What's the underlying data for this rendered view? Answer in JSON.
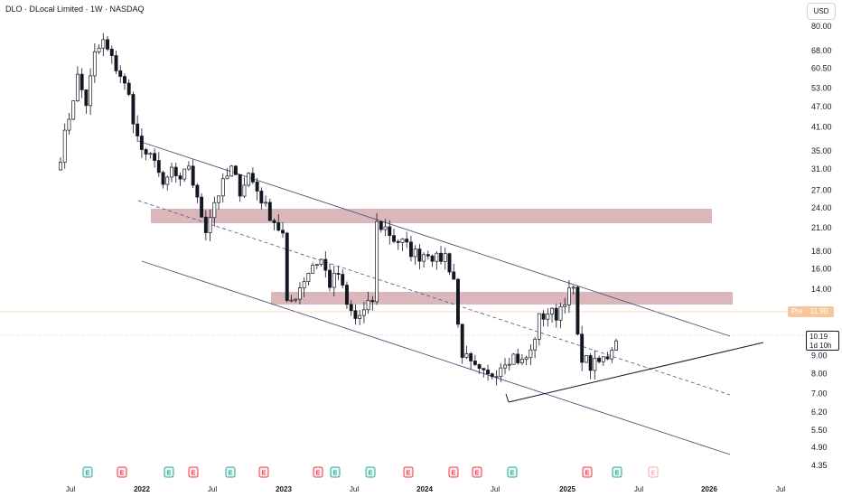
{
  "legend": {
    "text": "DLO · DLocal Limited · 1W · NASDAQ"
  },
  "currency": "USD",
  "price_badges": {
    "premarket_label": "Pre",
    "premarket_value": "11.90",
    "last_price": "10.19",
    "countdown": "1d 10h"
  },
  "colors": {
    "candle": "#131722",
    "zone": "#b97c82",
    "channel": "#4a5578",
    "premarket": "#f7a663"
  },
  "chart_data": {
    "type": "candlestick",
    "title": "DLO · DLocal Limited · 1W · NASDAQ",
    "y_scale": "log",
    "ylim": [
      4.2,
      85
    ],
    "y_ticks": [
      "80.00",
      "68.00",
      "60.50",
      "53.00",
      "47.00",
      "41.00",
      "35.00",
      "31.00",
      "27.00",
      "24.00",
      "21.00",
      "18.00",
      "16.00",
      "14.00",
      "11.90",
      "10.19",
      "9.00",
      "8.00",
      "7.00",
      "6.20",
      "5.50",
      "4.90",
      "4.35"
    ],
    "x_ticks": [
      {
        "label": "Jul",
        "year": false
      },
      {
        "label": "2022",
        "year": true
      },
      {
        "label": "Jul",
        "year": false
      },
      {
        "label": "2023",
        "year": true
      },
      {
        "label": "Jul",
        "year": false
      },
      {
        "label": "2024",
        "year": true
      },
      {
        "label": "Jul",
        "year": false
      },
      {
        "label": "2025",
        "year": true
      },
      {
        "label": "Jul",
        "year": false
      },
      {
        "label": "2026",
        "year": true
      },
      {
        "label": "Jul",
        "year": false
      }
    ],
    "anchors": [
      [
        0,
        34
      ],
      [
        2,
        44
      ],
      [
        4,
        57
      ],
      [
        6,
        48
      ],
      [
        8,
        66
      ],
      [
        10,
        72
      ],
      [
        12,
        64
      ],
      [
        14,
        58
      ],
      [
        16,
        50
      ],
      [
        18,
        38
      ],
      [
        20,
        33
      ],
      [
        22,
        34
      ],
      [
        24,
        27
      ],
      [
        26,
        31
      ],
      [
        28,
        28
      ],
      [
        30,
        32
      ],
      [
        32,
        25
      ],
      [
        34,
        21
      ],
      [
        36,
        25
      ],
      [
        38,
        28
      ],
      [
        40,
        31
      ],
      [
        42,
        27
      ],
      [
        44,
        30
      ],
      [
        46,
        27
      ],
      [
        48,
        24
      ],
      [
        50,
        22
      ],
      [
        52,
        20
      ],
      [
        53,
        12.5
      ],
      [
        55,
        13.5
      ],
      [
        57,
        15
      ],
      [
        59,
        16.5
      ],
      [
        61,
        17
      ],
      [
        63,
        14.5
      ],
      [
        65,
        15.5
      ],
      [
        67,
        12.5
      ],
      [
        69,
        11.5
      ],
      [
        71,
        12
      ],
      [
        73,
        13
      ],
      [
        74,
        21.5
      ],
      [
        76,
        21
      ],
      [
        78,
        19.5
      ],
      [
        80,
        19
      ],
      [
        82,
        18
      ],
      [
        84,
        17.5
      ],
      [
        86,
        18
      ],
      [
        88,
        17
      ],
      [
        90,
        17.5
      ],
      [
        92,
        15
      ],
      [
        93,
        11
      ],
      [
        94,
        9.2
      ],
      [
        96,
        8.4
      ],
      [
        98,
        8
      ],
      [
        100,
        7.8
      ],
      [
        102,
        8.2
      ],
      [
        104,
        8.8
      ],
      [
        106,
        9
      ],
      [
        108,
        8.6
      ],
      [
        110,
        9.2
      ],
      [
        112,
        11.5
      ],
      [
        114,
        12
      ],
      [
        116,
        11.8
      ],
      [
        118,
        13.2
      ],
      [
        120,
        14
      ],
      [
        121,
        10
      ],
      [
        122,
        9
      ],
      [
        124,
        8.4
      ],
      [
        126,
        8.6
      ],
      [
        128,
        9
      ],
      [
        130,
        10.2
      ]
    ],
    "earnings_markers": [
      {
        "label": "E",
        "type": "positive"
      },
      {
        "label": "E",
        "type": "negative"
      },
      {
        "label": "E",
        "type": "positive"
      },
      {
        "label": "E",
        "type": "negative"
      },
      {
        "label": "E",
        "type": "positive"
      },
      {
        "label": "E",
        "type": "negative"
      },
      {
        "label": "E",
        "type": "negative"
      },
      {
        "label": "E",
        "type": "positive"
      },
      {
        "label": "E",
        "type": "positive"
      },
      {
        "label": "E",
        "type": "negative"
      },
      {
        "label": "E",
        "type": "negative"
      },
      {
        "label": "E",
        "type": "negative"
      },
      {
        "label": "E",
        "type": "positive"
      },
      {
        "label": "E",
        "type": "negative"
      },
      {
        "label": "E",
        "type": "positive"
      },
      {
        "label": "E",
        "type": "upcoming"
      }
    ]
  }
}
